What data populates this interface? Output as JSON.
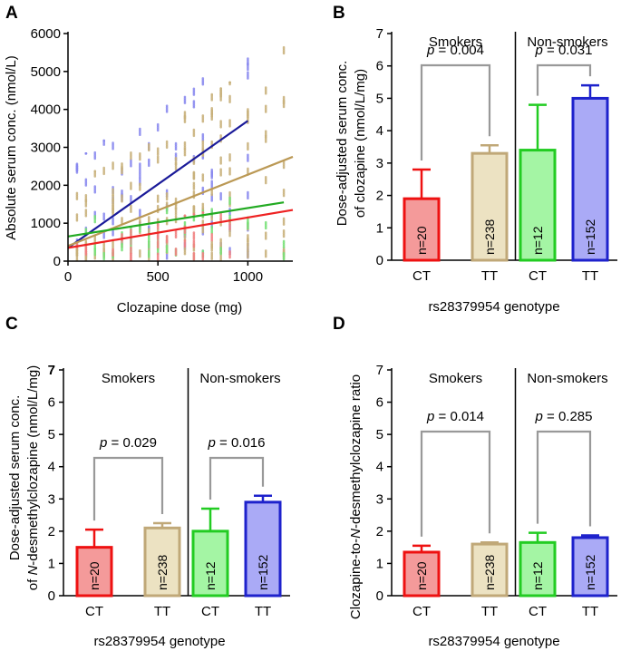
{
  "chart_data": [
    {
      "panel": "A",
      "type": "scatter",
      "xlabel": "Clozapine dose (mg)",
      "ylabel": "Absolute serum conc. (nmol/L)",
      "xlim": [
        0,
        1250
      ],
      "ylim": [
        0,
        6000
      ],
      "xticks": [
        "0",
        "500",
        "1000"
      ],
      "yticks": [
        "0",
        "1000",
        "2000",
        "3000",
        "4000",
        "5000",
        "6000"
      ],
      "series": [
        {
          "color": "#8888ee",
          "line_color": "#1a1a99",
          "line_x": [
            0,
            1000
          ],
          "line_y": [
            350,
            3700
          ],
          "scatter_x": [
            30,
            1000
          ],
          "scatter_y_max": [
            2600,
            5900
          ]
        },
        {
          "color": "#c8b07a",
          "line_color": "#bb9955",
          "line_x": [
            0,
            1250
          ],
          "line_y": [
            400,
            2750
          ],
          "scatter_x": [
            30,
            1250
          ],
          "scatter_y_max": [
            2000,
            5800
          ]
        },
        {
          "color": "#77e077",
          "line_color": "#22aa22",
          "line_x": [
            0,
            1200
          ],
          "line_y": [
            650,
            1550
          ],
          "scatter_x": [
            30,
            1200
          ],
          "scatter_y_max": [
            1200,
            1900
          ]
        },
        {
          "color": "#f08080",
          "line_color": "#ee2222",
          "line_x": [
            0,
            1250
          ],
          "line_y": [
            350,
            1350
          ],
          "scatter_x": [
            30,
            900
          ],
          "scatter_y_max": [
            700,
            1400
          ]
        }
      ]
    },
    {
      "panel": "B",
      "type": "bar",
      "ylabel_line1": "Dose-adjusted serum conc.",
      "ylabel_line2": "of clozapine (nmol/L/mg)",
      "xlabel": "rs28379954 genotype",
      "ylim": [
        0,
        7
      ],
      "yticks": [
        "0",
        "1",
        "2",
        "3",
        "4",
        "5",
        "6",
        "7"
      ],
      "groups": [
        "Smokers",
        "Non-smokers"
      ],
      "categories": [
        "CT",
        "TT",
        "CT",
        "TT"
      ],
      "values": [
        1.9,
        3.3,
        3.4,
        5.0
      ],
      "errors": [
        0.9,
        0.25,
        1.4,
        0.4
      ],
      "n_labels": [
        "n=20",
        "n=238",
        "n=12",
        "n=152"
      ],
      "p_values": [
        "p",
        "= 0.004",
        "p",
        "= 0.031"
      ]
    },
    {
      "panel": "C",
      "type": "bar",
      "ylabel_line1": "Dose-adjusted serum conc.",
      "ylabel_line2_pre": "of ",
      "ylabel_line2_italic": "N",
      "ylabel_line2_post": "-desmethylclozapine (nmol/L/mg)",
      "xlabel": "rs28379954 genotype",
      "ylim": [
        0,
        7
      ],
      "yticks": [
        "0",
        "1",
        "2",
        "3",
        "4",
        "5",
        "6",
        "7"
      ],
      "groups": [
        "Smokers",
        "Non-smokers"
      ],
      "categories": [
        "CT",
        "TT",
        "CT",
        "TT"
      ],
      "values": [
        1.5,
        2.1,
        2.0,
        2.9
      ],
      "errors": [
        0.55,
        0.15,
        0.7,
        0.2
      ],
      "n_labels": [
        "n=20",
        "n=238",
        "n=12",
        "n=152"
      ],
      "p_values": [
        "p",
        "= 0.029",
        "p",
        "= 0.016"
      ]
    },
    {
      "panel": "D",
      "type": "bar",
      "ylabel_pre": "Clozapine-to-",
      "ylabel_italic": "N",
      "ylabel_post": "-desmethylclozapine ratio",
      "xlabel": "rs28379954 genotype",
      "ylim": [
        0,
        7
      ],
      "yticks": [
        "0",
        "1",
        "2",
        "3",
        "4",
        "5",
        "6",
        "7"
      ],
      "groups": [
        "Smokers",
        "Non-smokers"
      ],
      "categories": [
        "CT",
        "TT",
        "CT",
        "TT"
      ],
      "values": [
        1.35,
        1.6,
        1.65,
        1.8
      ],
      "errors": [
        0.2,
        0.05,
        0.3,
        0.07
      ],
      "n_labels": [
        "n=20",
        "n=238",
        "n=12",
        "n=152"
      ],
      "p_values": [
        "p",
        "= 0.014",
        "p",
        "= 0.285"
      ]
    }
  ],
  "bar_colors": {
    "fill": [
      "#f49a9a",
      "#ece2c2",
      "#a4f5a4",
      "#aaaaf6"
    ],
    "stroke": [
      "#ee1111",
      "#c0a878",
      "#22cc22",
      "#1e22cc"
    ]
  }
}
